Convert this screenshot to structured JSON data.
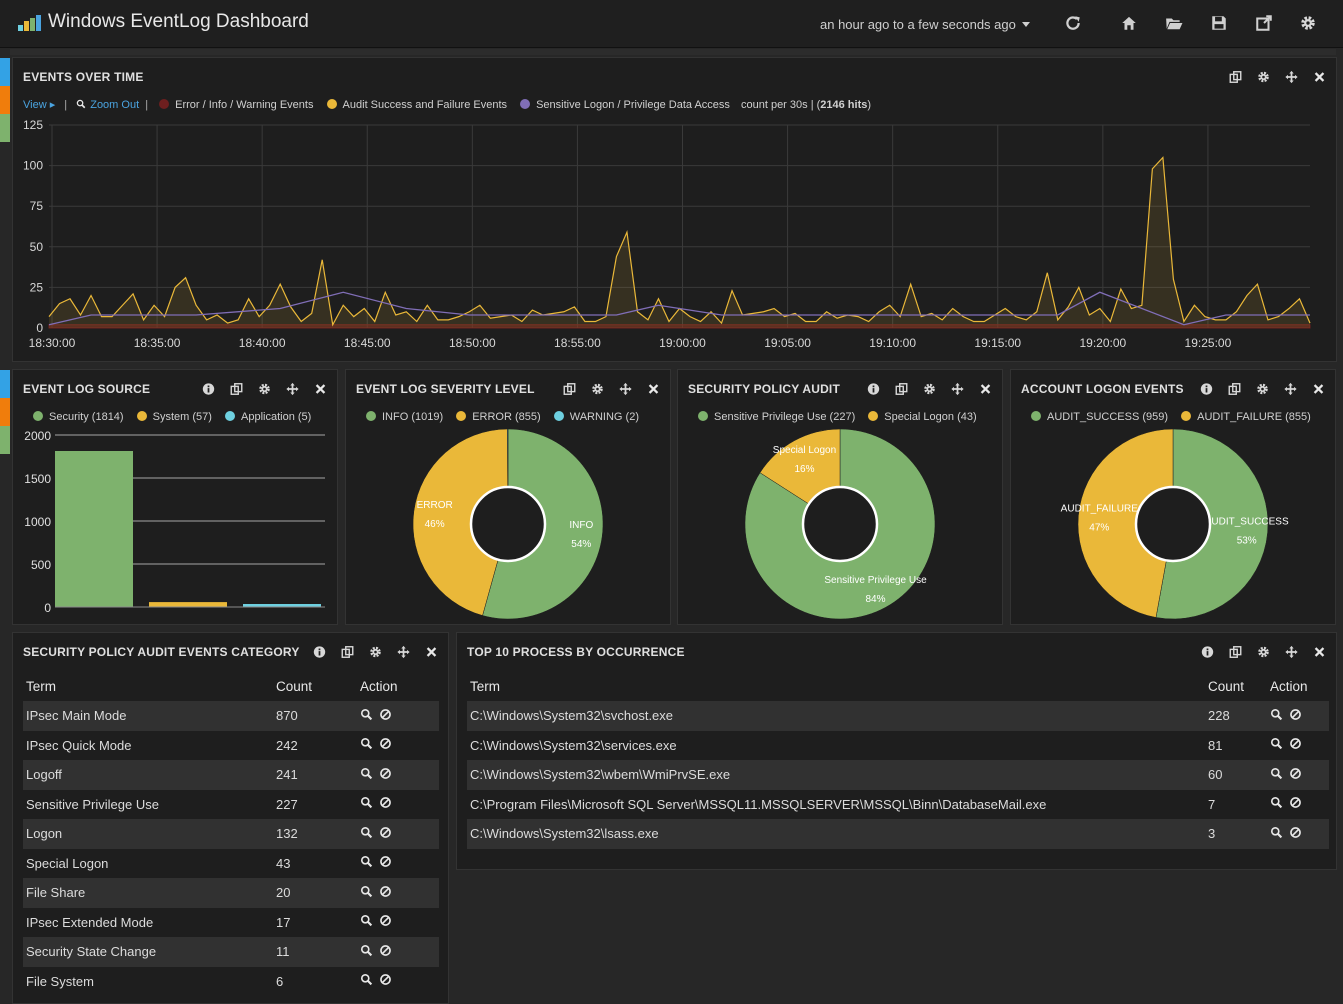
{
  "app": {
    "title": "Windows EventLog Dashboard",
    "time_range": "an hour ago to a few seconds ago"
  },
  "nav_icons": [
    "refresh-icon",
    "home-icon",
    "folder-open-icon",
    "save-icon",
    "share-icon",
    "settings-icon"
  ],
  "colors": {
    "green": "#7eb26d",
    "yellow": "#eab839",
    "blue": "#6ed0e0",
    "darkred": "#6d1f1f",
    "purple": "#806eb7",
    "panel": "#1e1e1e"
  },
  "events_over_time": {
    "title": "EVENTS OVER TIME",
    "view_label": "View",
    "zoom_label": "Zoom Out",
    "legend": [
      {
        "label": "Error / Info / Warning Events",
        "color": "#6d1f1f"
      },
      {
        "label": "Audit Success and Failure Events",
        "color": "#eab839"
      },
      {
        "label": "Sensitive Logon / Privilege Data Access",
        "color": "#806eb7"
      }
    ],
    "count_text": "count per 30s | (",
    "hits": "2146 hits",
    "count_close": ")"
  },
  "chart_data": [
    {
      "type": "area",
      "title": "EVENTS OVER TIME",
      "x_ticks": [
        "18:30:00",
        "18:35:00",
        "18:40:00",
        "18:45:00",
        "18:50:00",
        "18:55:00",
        "19:00:00",
        "19:05:00",
        "19:10:00",
        "19:15:00",
        "19:20:00",
        "19:25:00"
      ],
      "ylim": [
        0,
        125
      ],
      "y_ticks": [
        0,
        25,
        50,
        75,
        100,
        125
      ],
      "grid": true,
      "series": [
        {
          "name": "Audit Success and Failure Events",
          "color": "#eab839",
          "values": [
            7,
            15,
            18,
            8,
            20,
            7,
            7,
            14,
            21,
            5,
            14,
            7,
            25,
            31,
            14,
            5,
            8,
            3,
            5,
            18,
            7,
            14,
            27,
            13,
            4,
            9,
            42,
            2,
            14,
            7,
            12,
            4,
            22,
            8,
            10,
            4,
            14,
            5,
            5,
            7,
            10,
            14,
            6,
            7,
            8,
            4,
            11,
            8,
            9,
            10,
            13,
            4,
            4,
            7,
            44,
            59,
            10,
            5,
            18,
            4,
            12,
            7,
            4,
            10,
            3,
            23,
            8,
            9,
            10,
            12,
            7,
            9,
            4,
            4,
            10,
            6,
            8,
            7,
            4,
            10,
            14,
            7,
            27,
            7,
            9,
            5,
            12,
            7,
            4,
            4,
            8,
            12,
            7,
            5,
            10,
            34,
            5,
            13,
            25,
            8,
            12,
            4,
            24,
            12,
            14,
            98,
            105,
            30,
            4,
            14,
            7,
            5,
            5,
            10,
            20,
            27,
            5,
            7,
            12,
            18,
            3
          ]
        },
        {
          "name": "Error / Info / Warning Events",
          "color": "#6d1f1f",
          "values": [
            2,
            2,
            2,
            2,
            2,
            2,
            2,
            2,
            2,
            2,
            2,
            2,
            2,
            2,
            2,
            2,
            2,
            2,
            2,
            2,
            2,
            2,
            2,
            2,
            2,
            2,
            2,
            2,
            2,
            2,
            2,
            2,
            2,
            2,
            2,
            2,
            2,
            2,
            2,
            2,
            2,
            2,
            2,
            2,
            2,
            2,
            2,
            2,
            2,
            2,
            2,
            2,
            2,
            2,
            2,
            2,
            2,
            2,
            2,
            2,
            2,
            2,
            2,
            2,
            2,
            2,
            2,
            2,
            2,
            2,
            2,
            2,
            2,
            2,
            2,
            2,
            2,
            2,
            2,
            2,
            2,
            2,
            2,
            2,
            2,
            2,
            2,
            2,
            2,
            2,
            2,
            2,
            2,
            2,
            2,
            2,
            2,
            2,
            2,
            2,
            2,
            2,
            2,
            2,
            2,
            2,
            2,
            2,
            2,
            2,
            2,
            2,
            2,
            2,
            2,
            2,
            2,
            2,
            2,
            2,
            2
          ]
        },
        {
          "name": "Sensitive Logon / Privilege Data Access",
          "color": "#806eb7",
          "x_idx": [
            0,
            4,
            10,
            14,
            22,
            28,
            34,
            40,
            54,
            58,
            64,
            74,
            84,
            96,
            100,
            108,
            112,
            120
          ],
          "values": [
            2,
            8,
            8,
            8,
            12,
            22,
            12,
            8,
            8,
            14,
            8,
            8,
            8,
            8,
            22,
            2,
            8,
            8
          ]
        }
      ]
    },
    {
      "type": "bar",
      "title": "EVENT LOG SOURCE",
      "categories": [
        "Security",
        "System",
        "Application"
      ],
      "values": [
        1814,
        57,
        5
      ],
      "colors": [
        "#7eb26d",
        "#eab839",
        "#6ed0e0"
      ],
      "ylim": [
        0,
        2000
      ],
      "y_ticks": [
        0,
        500,
        1000,
        1500,
        2000
      ]
    },
    {
      "type": "pie",
      "title": "EVENT LOG SEVERITY LEVEL",
      "labels": [
        "INFO",
        "ERROR",
        "WARNING"
      ],
      "values": [
        1019,
        855,
        2
      ],
      "colors": [
        "#7eb26d",
        "#eab839",
        "#6ed0e0"
      ]
    },
    {
      "type": "pie",
      "title": "SECURITY POLICY AUDIT",
      "labels": [
        "Sensitive Privilege Use",
        "Special Logon"
      ],
      "values": [
        227,
        43
      ],
      "colors": [
        "#7eb26d",
        "#eab839"
      ]
    },
    {
      "type": "pie",
      "title": "ACCOUNT LOGON EVENTS",
      "labels": [
        "AUDIT_SUCCESS",
        "AUDIT_FAILURE"
      ],
      "values": [
        959,
        855
      ],
      "colors": [
        "#7eb26d",
        "#eab839"
      ]
    }
  ],
  "source_panel": {
    "title": "EVENT LOG SOURCE",
    "legend": [
      "Security (1814)",
      "System (57)",
      "Application (5)"
    ]
  },
  "severity_panel": {
    "title": "EVENT LOG SEVERITY LEVEL",
    "legend": [
      "INFO (1019)",
      "ERROR (855)",
      "WARNING (2)"
    ],
    "slice_labels": [
      {
        "name": "INFO",
        "pct": "54%"
      },
      {
        "name": "ERROR",
        "pct": "46%"
      }
    ]
  },
  "audit_panel": {
    "title": "SECURITY POLICY AUDIT",
    "legend": [
      "Sensitive Privilege Use (227)",
      "Special Logon (43)"
    ],
    "slice_labels": [
      {
        "name": "Sensitive Privilege Use",
        "pct": "84%"
      },
      {
        "name": "Special Logon",
        "pct": "16%"
      }
    ]
  },
  "logon_panel": {
    "title": "ACCOUNT LOGON EVENTS",
    "legend": [
      "AUDIT_SUCCESS (959)",
      "AUDIT_FAILURE (855)"
    ],
    "slice_labels": [
      {
        "name": "AUDIT_SUCCESS",
        "pct": "53%"
      },
      {
        "name": "AUDIT_FAILURE",
        "pct": "47%"
      }
    ]
  },
  "category_table": {
    "title": "SECURITY POLICY AUDIT EVENTS CATEGORY",
    "headers": {
      "term": "Term",
      "count": "Count",
      "action": "Action"
    },
    "rows": [
      {
        "term": "IPsec Main Mode",
        "count": "870"
      },
      {
        "term": "IPsec Quick Mode",
        "count": "242"
      },
      {
        "term": "Logoff",
        "count": "241"
      },
      {
        "term": "Sensitive Privilege Use",
        "count": "227"
      },
      {
        "term": "Logon",
        "count": "132"
      },
      {
        "term": "Special Logon",
        "count": "43"
      },
      {
        "term": "File Share",
        "count": "20"
      },
      {
        "term": "IPsec Extended Mode",
        "count": "17"
      },
      {
        "term": "Security State Change",
        "count": "11"
      },
      {
        "term": "File System",
        "count": "6"
      }
    ]
  },
  "process_table": {
    "title": "TOP 10 PROCESS BY OCCURRENCE",
    "headers": {
      "term": "Term",
      "count": "Count",
      "action": "Action"
    },
    "rows": [
      {
        "term": "C:\\Windows\\System32\\svchost.exe",
        "count": "228"
      },
      {
        "term": "C:\\Windows\\System32\\services.exe",
        "count": "81"
      },
      {
        "term": "C:\\Windows\\System32\\wbem\\WmiPrvSE.exe",
        "count": "60"
      },
      {
        "term": "C:\\Program Files\\Microsoft SQL Server\\MSSQL11.MSSQLSERVER\\MSSQL\\Binn\\DatabaseMail.exe",
        "count": "7"
      },
      {
        "term": "C:\\Windows\\System32\\lsass.exe",
        "count": "3"
      }
    ]
  }
}
